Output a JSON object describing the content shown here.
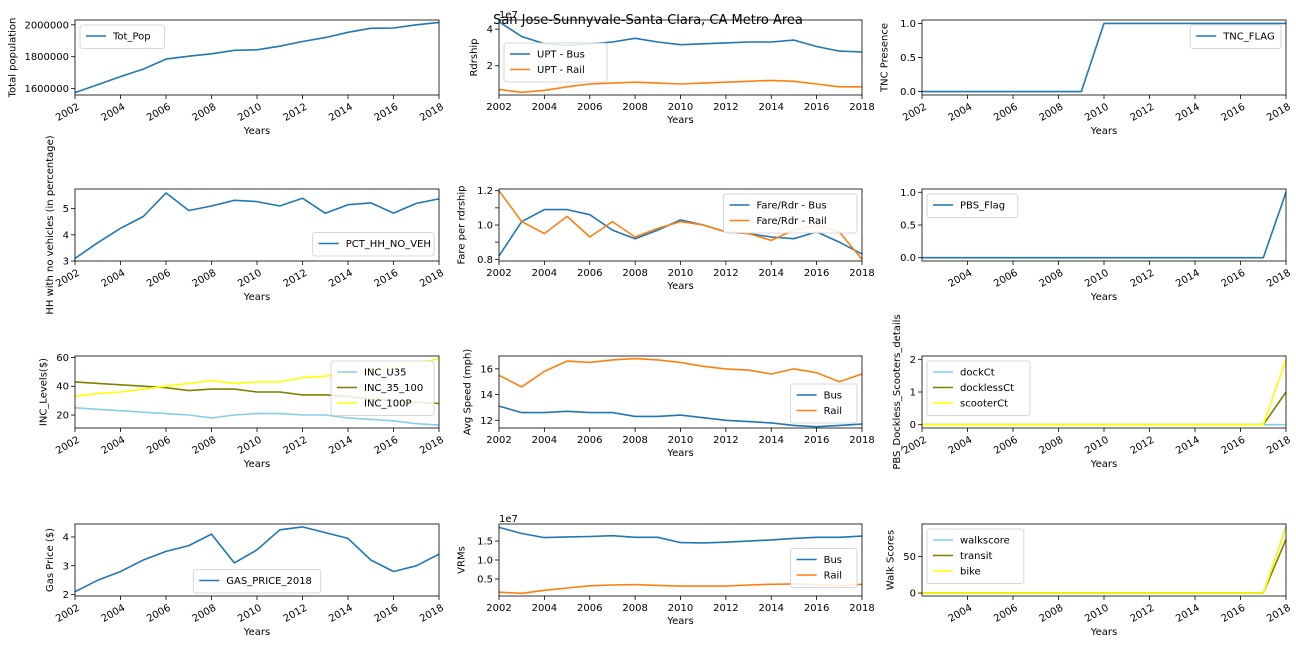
{
  "figure_title": "San Jose-Sunnyvale-Santa Clara, CA Metro Area",
  "colors": {
    "blue": "#1f77b4",
    "orange": "#ff7f0e",
    "skyblue": "#87ceeb",
    "olive": "#808000",
    "yellow": "#ffff00"
  },
  "chart_data": [
    {
      "id": "pop",
      "type": "line",
      "xlabel": "Years",
      "ylabel": "Total population",
      "xlim": [
        2002,
        2018
      ],
      "ylim": [
        1560000,
        2030000
      ],
      "yticks": [
        1600000,
        1800000,
        2000000
      ],
      "yticklabels": [
        "1600000",
        "1800000",
        "2000000"
      ],
      "xticks": [
        2002,
        2004,
        2006,
        2008,
        2010,
        2012,
        2014,
        2016,
        2018
      ],
      "xtick_rotate": true,
      "legend_loc": "upper-left",
      "x": [
        2002,
        2003,
        2004,
        2005,
        2006,
        2007,
        2008,
        2009,
        2010,
        2011,
        2012,
        2013,
        2014,
        2015,
        2016,
        2017,
        2018
      ],
      "series": [
        {
          "name": "Tot_Pop",
          "color": "#1f77b4",
          "values": [
            1575000,
            1625000,
            1675000,
            1722000,
            1785000,
            1803000,
            1818000,
            1840000,
            1843000,
            1866000,
            1895000,
            1920000,
            1953000,
            1978000,
            1980000,
            2000000,
            2015000
          ]
        }
      ]
    },
    {
      "id": "upt",
      "type": "line",
      "xlabel": "Years",
      "ylabel": "Rdrship",
      "offset_text": "1e7",
      "xlim": [
        2002,
        2018
      ],
      "ylim": [
        0.4,
        4.5
      ],
      "yticks": [
        2,
        4
      ],
      "yticklabels": [
        "2",
        "4"
      ],
      "xticks": [
        2002,
        2004,
        2006,
        2008,
        2010,
        2012,
        2014,
        2016,
        2018
      ],
      "xtick_rotate": false,
      "legend_loc": "center-left",
      "x": [
        2002,
        2003,
        2004,
        2005,
        2006,
        2007,
        2008,
        2009,
        2010,
        2011,
        2012,
        2013,
        2014,
        2015,
        2016,
        2017,
        2018
      ],
      "series": [
        {
          "name": "UPT - Bus",
          "color": "#1f77b4",
          "values": [
            4.4,
            3.6,
            3.2,
            3.1,
            3.2,
            3.3,
            3.5,
            3.3,
            3.15,
            3.2,
            3.25,
            3.3,
            3.3,
            3.4,
            3.05,
            2.8,
            2.75
          ]
        },
        {
          "name": "UPT - Rail",
          "color": "#ff7f0e",
          "values": [
            0.7,
            0.55,
            0.65,
            0.85,
            1.0,
            1.05,
            1.1,
            1.05,
            1.0,
            1.05,
            1.1,
            1.15,
            1.2,
            1.15,
            1.0,
            0.85,
            0.85
          ]
        }
      ]
    },
    {
      "id": "tnc",
      "type": "line",
      "xlabel": "Years",
      "ylabel": "TNC Presence",
      "xlim": [
        2002,
        2018
      ],
      "ylim": [
        -0.05,
        1.05
      ],
      "yticks": [
        0,
        0.5,
        1
      ],
      "yticklabels": [
        "0.0",
        "0.5",
        "1.0"
      ],
      "xticks": [
        2002,
        2004,
        2006,
        2008,
        2010,
        2012,
        2014,
        2016,
        2018
      ],
      "xtick_rotate": true,
      "legend_loc": "upper-right",
      "x": [
        2002,
        2003,
        2004,
        2005,
        2006,
        2007,
        2008,
        2009,
        2010,
        2011,
        2012,
        2013,
        2014,
        2015,
        2016,
        2017,
        2018
      ],
      "series": [
        {
          "name": "TNC_FLAG",
          "color": "#1f77b4",
          "values": [
            0,
            0,
            0,
            0,
            0,
            0,
            0,
            0,
            1,
            1,
            1,
            1,
            1,
            1,
            1,
            1,
            1
          ]
        }
      ]
    },
    {
      "id": "hhnoveh",
      "type": "line",
      "xlabel": "Years",
      "ylabel": "HH with no vehicles (in percentage)",
      "xlim": [
        2002,
        2018
      ],
      "ylim": [
        3.0,
        5.75
      ],
      "yticks": [
        3,
        4,
        5
      ],
      "yticklabels": [
        "3",
        "4",
        "5"
      ],
      "xticks": [
        2002,
        2004,
        2006,
        2008,
        2010,
        2012,
        2014,
        2016,
        2018
      ],
      "xtick_rotate": true,
      "legend_loc": "lower-right",
      "x": [
        2002,
        2003,
        2004,
        2005,
        2006,
        2007,
        2008,
        2009,
        2010,
        2011,
        2012,
        2013,
        2014,
        2015,
        2016,
        2017,
        2018
      ],
      "series": [
        {
          "name": "PCT_HH_NO_VEH",
          "color": "#1f77b4",
          "values": [
            3.1,
            3.7,
            4.25,
            4.7,
            5.6,
            4.93,
            5.1,
            5.32,
            5.27,
            5.1,
            5.4,
            4.82,
            5.15,
            5.22,
            4.83,
            5.2,
            5.37
          ]
        }
      ]
    },
    {
      "id": "fare",
      "type": "line",
      "xlabel": "Years",
      "ylabel": "Fare per rdrship",
      "xlim": [
        2002,
        2018
      ],
      "ylim": [
        0.79,
        1.21
      ],
      "yticks": [
        0.8,
        0.9,
        1.0,
        1.1,
        1.2
      ],
      "yticklabels": [
        "0.8",
        "",
        "1.0",
        "",
        "1.2"
      ],
      "xticks": [
        2002,
        2004,
        2006,
        2008,
        2010,
        2012,
        2014,
        2016,
        2018
      ],
      "xtick_rotate": false,
      "legend_loc": "upper-right",
      "x": [
        2002,
        2003,
        2004,
        2005,
        2006,
        2007,
        2008,
        2009,
        2010,
        2011,
        2012,
        2013,
        2014,
        2015,
        2016,
        2017,
        2018
      ],
      "series": [
        {
          "name": "Fare/Rdr - Bus",
          "color": "#1f77b4",
          "values": [
            0.82,
            1.02,
            1.09,
            1.09,
            1.06,
            0.97,
            0.92,
            0.97,
            1.03,
            1.0,
            0.96,
            0.95,
            0.93,
            0.92,
            0.96,
            0.9,
            0.83
          ]
        },
        {
          "name": "Fare/Rdr - Rail",
          "color": "#ff7f0e",
          "values": [
            1.2,
            1.02,
            0.95,
            1.05,
            0.93,
            1.02,
            0.93,
            0.98,
            1.02,
            1.0,
            0.96,
            0.95,
            0.91,
            0.97,
            1.0,
            0.96,
            0.8
          ]
        }
      ]
    },
    {
      "id": "pbs",
      "type": "line",
      "xlabel": "Years",
      "ylabel": "",
      "xlim": [
        2002,
        2018
      ],
      "ylim": [
        -0.05,
        1.05
      ],
      "yticks": [
        0,
        0.5,
        1
      ],
      "yticklabels": [
        "0.0",
        "0.5",
        "1.0"
      ],
      "xticks": [
        2004,
        2006,
        2008,
        2010,
        2012,
        2014,
        2016,
        2018
      ],
      "xtick_rotate": true,
      "legend_loc": "upper-left",
      "x": [
        2002,
        2003,
        2004,
        2005,
        2006,
        2007,
        2008,
        2009,
        2010,
        2011,
        2012,
        2013,
        2014,
        2015,
        2016,
        2017,
        2018
      ],
      "series": [
        {
          "name": "PBS_Flag",
          "color": "#1f77b4",
          "values": [
            0,
            0,
            0,
            0,
            0,
            0,
            0,
            0,
            0,
            0,
            0,
            0,
            0,
            0,
            0,
            0,
            1
          ]
        }
      ]
    },
    {
      "id": "inc",
      "type": "line",
      "xlabel": "Years",
      "ylabel": "INC_Levels($)",
      "xlim": [
        2002,
        2018
      ],
      "ylim": [
        11,
        61
      ],
      "yticks": [
        20,
        40,
        60
      ],
      "yticklabels": [
        "20",
        "40",
        "60"
      ],
      "xticks": [
        2002,
        2004,
        2006,
        2008,
        2010,
        2012,
        2014,
        2016,
        2018
      ],
      "xtick_rotate": true,
      "legend_loc": "upper-right",
      "x": [
        2002,
        2003,
        2004,
        2005,
        2006,
        2007,
        2008,
        2009,
        2010,
        2011,
        2012,
        2013,
        2014,
        2015,
        2016,
        2017,
        2018
      ],
      "series": [
        {
          "name": "INC_U35",
          "color": "#87ceeb",
          "values": [
            25,
            24,
            23,
            22,
            21,
            20,
            18,
            20,
            21,
            21,
            20,
            20,
            18,
            17,
            16,
            14,
            13
          ]
        },
        {
          "name": "INC_35_100",
          "color": "#808000",
          "values": [
            43,
            42,
            41,
            40,
            39,
            37,
            38,
            38,
            36,
            36,
            34,
            34,
            33,
            31,
            30,
            29,
            28
          ]
        },
        {
          "name": "INC_100P",
          "color": "#ffff00",
          "values": [
            33,
            35,
            36,
            38,
            40,
            42,
            44,
            42,
            43,
            43,
            46,
            47,
            49,
            51,
            53,
            56,
            59
          ]
        }
      ]
    },
    {
      "id": "speed",
      "type": "line",
      "xlabel": "Years",
      "ylabel": "Avg Speed (mph)",
      "xlim": [
        2002,
        2018
      ],
      "ylim": [
        11.4,
        17.0
      ],
      "yticks": [
        12,
        14,
        16
      ],
      "yticklabels": [
        "12",
        "14",
        "16"
      ],
      "xticks": [
        2002,
        2004,
        2006,
        2008,
        2010,
        2012,
        2014,
        2016,
        2018
      ],
      "xtick_rotate": false,
      "legend_loc": "lower-right",
      "x": [
        2002,
        2003,
        2004,
        2005,
        2006,
        2007,
        2008,
        2009,
        2010,
        2011,
        2012,
        2013,
        2014,
        2015,
        2016,
        2017,
        2018
      ],
      "series": [
        {
          "name": "Bus",
          "color": "#1f77b4",
          "values": [
            13.1,
            12.6,
            12.6,
            12.7,
            12.6,
            12.6,
            12.3,
            12.3,
            12.4,
            12.2,
            12.0,
            11.9,
            11.8,
            11.6,
            11.5,
            11.6,
            11.7
          ]
        },
        {
          "name": "Rail",
          "color": "#ff7f0e",
          "values": [
            15.5,
            14.6,
            15.8,
            16.6,
            16.5,
            16.7,
            16.8,
            16.7,
            16.5,
            16.2,
            16.0,
            15.9,
            15.6,
            16.0,
            15.7,
            15.0,
            15.6
          ]
        }
      ]
    },
    {
      "id": "pbsdetails",
      "type": "line",
      "xlabel": "Years",
      "ylabel": "PBS_Dockless_Scooters_details",
      "xlim": [
        2002,
        2018
      ],
      "ylim": [
        -0.1,
        2.1
      ],
      "yticks": [
        0,
        1,
        2
      ],
      "yticklabels": [
        "0",
        "1",
        "2"
      ],
      "xticks": [
        2002,
        2004,
        2006,
        2008,
        2010,
        2012,
        2014,
        2016,
        2018
      ],
      "xtick_rotate": true,
      "legend_loc": "upper-left",
      "x": [
        2002,
        2003,
        2004,
        2005,
        2006,
        2007,
        2008,
        2009,
        2010,
        2011,
        2012,
        2013,
        2014,
        2015,
        2016,
        2017,
        2018
      ],
      "series": [
        {
          "name": "dockCt",
          "color": "#87ceeb",
          "values": [
            0,
            0,
            0,
            0,
            0,
            0,
            0,
            0,
            0,
            0,
            0,
            0,
            0,
            0,
            0,
            0,
            0
          ]
        },
        {
          "name": "docklessCt",
          "color": "#808000",
          "values": [
            0,
            0,
            0,
            0,
            0,
            0,
            0,
            0,
            0,
            0,
            0,
            0,
            0,
            0,
            0,
            0,
            1
          ]
        },
        {
          "name": "scooterCt",
          "color": "#ffff00",
          "values": [
            0,
            0,
            0,
            0,
            0,
            0,
            0,
            0,
            0,
            0,
            0,
            0,
            0,
            0,
            0,
            0,
            2
          ]
        }
      ]
    },
    {
      "id": "gas",
      "type": "line",
      "xlabel": "Years",
      "ylabel": "Gas Price ($)",
      "xlim": [
        2002,
        2018
      ],
      "ylim": [
        1.95,
        4.45
      ],
      "yticks": [
        2,
        3,
        4
      ],
      "yticklabels": [
        "2",
        "3",
        "4"
      ],
      "xticks": [
        2002,
        2004,
        2006,
        2008,
        2010,
        2012,
        2014,
        2016,
        2018
      ],
      "xtick_rotate": true,
      "legend_loc": "lower-center",
      "x": [
        2002,
        2003,
        2004,
        2005,
        2006,
        2007,
        2008,
        2009,
        2010,
        2011,
        2012,
        2013,
        2014,
        2015,
        2016,
        2017,
        2018
      ],
      "series": [
        {
          "name": "GAS_PRICE_2018",
          "color": "#1f77b4",
          "values": [
            2.1,
            2.5,
            2.8,
            3.2,
            3.5,
            3.7,
            4.1,
            3.1,
            3.55,
            4.25,
            4.35,
            4.15,
            3.95,
            3.2,
            2.8,
            3.0,
            3.4
          ]
        }
      ]
    },
    {
      "id": "vrm",
      "type": "line",
      "xlabel": "Years",
      "ylabel": "VRMs",
      "offset_text": "1e7",
      "xlim": [
        2002,
        2018
      ],
      "ylim": [
        0.05,
        1.95
      ],
      "yticks": [
        0.5,
        1.0,
        1.5
      ],
      "yticklabels": [
        "0.5",
        "1.0",
        "1.5"
      ],
      "xticks": [
        2002,
        2004,
        2006,
        2008,
        2010,
        2012,
        2014,
        2016,
        2018
      ],
      "xtick_rotate": false,
      "legend_loc": "center-right",
      "x": [
        2002,
        2003,
        2004,
        2005,
        2006,
        2007,
        2008,
        2009,
        2010,
        2011,
        2012,
        2013,
        2014,
        2015,
        2016,
        2017,
        2018
      ],
      "series": [
        {
          "name": "Bus",
          "color": "#1f77b4",
          "values": [
            1.86,
            1.7,
            1.59,
            1.61,
            1.62,
            1.64,
            1.6,
            1.6,
            1.46,
            1.45,
            1.47,
            1.5,
            1.53,
            1.57,
            1.6,
            1.6,
            1.63
          ]
        },
        {
          "name": "Rail",
          "color": "#ff7f0e",
          "values": [
            0.15,
            0.12,
            0.2,
            0.26,
            0.32,
            0.34,
            0.35,
            0.33,
            0.31,
            0.31,
            0.31,
            0.34,
            0.36,
            0.37,
            0.35,
            0.32,
            0.36
          ]
        }
      ]
    },
    {
      "id": "walk",
      "type": "line",
      "xlabel": "Years",
      "ylabel": "Walk Scores",
      "xlim": [
        2002,
        2018
      ],
      "ylim": [
        -4,
        94
      ],
      "yticks": [
        0,
        50
      ],
      "yticklabels": [
        "0",
        "50"
      ],
      "xticks": [
        2004,
        2006,
        2008,
        2010,
        2012,
        2014,
        2016,
        2018
      ],
      "xtick_rotate": true,
      "legend_loc": "upper-left",
      "x": [
        2002,
        2003,
        2004,
        2005,
        2006,
        2007,
        2008,
        2009,
        2010,
        2011,
        2012,
        2013,
        2014,
        2015,
        2016,
        2017,
        2018
      ],
      "series": [
        {
          "name": "walkscore",
          "color": "#87ceeb",
          "values": [
            0,
            0,
            0,
            0,
            0,
            0,
            0,
            0,
            0,
            0,
            0,
            0,
            0,
            0,
            0,
            0,
            90
          ]
        },
        {
          "name": "transit",
          "color": "#808000",
          "values": [
            0,
            0,
            0,
            0,
            0,
            0,
            0,
            0,
            0,
            0,
            0,
            0,
            0,
            0,
            0,
            0,
            73
          ]
        },
        {
          "name": "bike",
          "color": "#ffff00",
          "values": [
            0,
            0,
            0,
            0,
            0,
            0,
            0,
            0,
            0,
            0,
            0,
            0,
            0,
            0,
            0,
            0,
            88
          ]
        }
      ]
    }
  ]
}
